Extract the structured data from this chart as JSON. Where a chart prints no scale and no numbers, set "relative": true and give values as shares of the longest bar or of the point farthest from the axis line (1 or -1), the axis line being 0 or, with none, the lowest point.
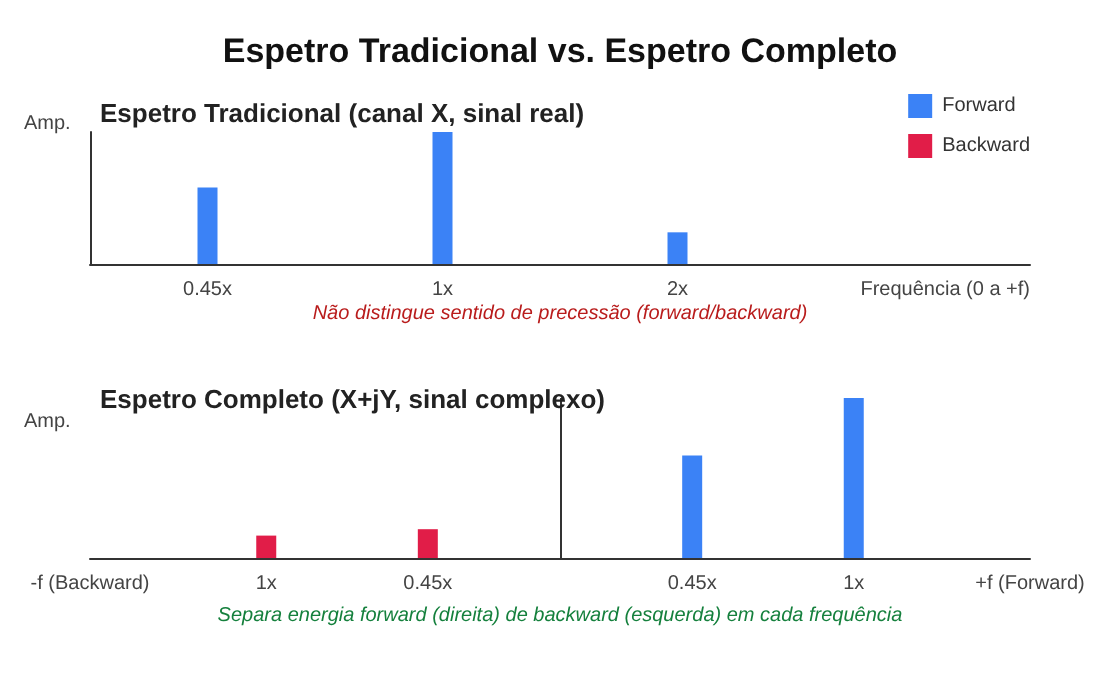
{
  "chart_data": [
    {
      "type": "bar",
      "title": "Espetro Tradicional vs. Espetro Completo",
      "subtitle": "Espetro Tradicional (canal X, sinal real)",
      "ylabel": "Amp.",
      "xlabel": "Frequência (0 a +f)",
      "relative": true,
      "categories": [
        "0.45x",
        "1x",
        "2x",
        null
      ],
      "series": [
        {
          "name": "Forward",
          "color": "#3b82f6",
          "values": [
            0.58,
            1,
            0.24,
            null
          ]
        },
        {
          "name": "Backward",
          "color": "#e11d48",
          "values": [
            null,
            null,
            null,
            null
          ]
        }
      ],
      "legend": "top right",
      "annotations": [
        "Não distingue sentido de precessão (forward/backward)"
      ]
    },
    {
      "type": "bar",
      "title": "Espetro Completo (X+jY, sinal complexo)",
      "ylabel": "Amp.",
      "relative": true,
      "x": [
        -1,
        -0.45,
        0.45,
        1
      ],
      "xlim": [
        -1.6,
        1.6
      ],
      "xticks": [
        {
          "value": -1.6,
          "label": "-f (Backward)"
        },
        {
          "value": -1,
          "label": "1x"
        },
        {
          "value": -0.45,
          "label": "0.45x"
        },
        {
          "value": 0.45,
          "label": "0.45x"
        },
        {
          "value": 1,
          "label": "1x"
        },
        {
          "value": 1.6,
          "label": "+f (Forward)"
        }
      ],
      "series": [
        {
          "color": "#e11d48",
          "values": [
            0.14,
            0.18,
            null,
            null
          ]
        },
        {
          "color": "#3b82f6",
          "values": [
            null,
            null,
            0.64,
            1
          ]
        }
      ],
      "ref_lines": [
        {
          "axis": "x",
          "value": 0,
          "color": "#333333"
        }
      ],
      "legend": false,
      "annotations": [
        "Separa energia forward (direita) de backward (esquerda) em cada frequência"
      ]
    }
  ]
}
